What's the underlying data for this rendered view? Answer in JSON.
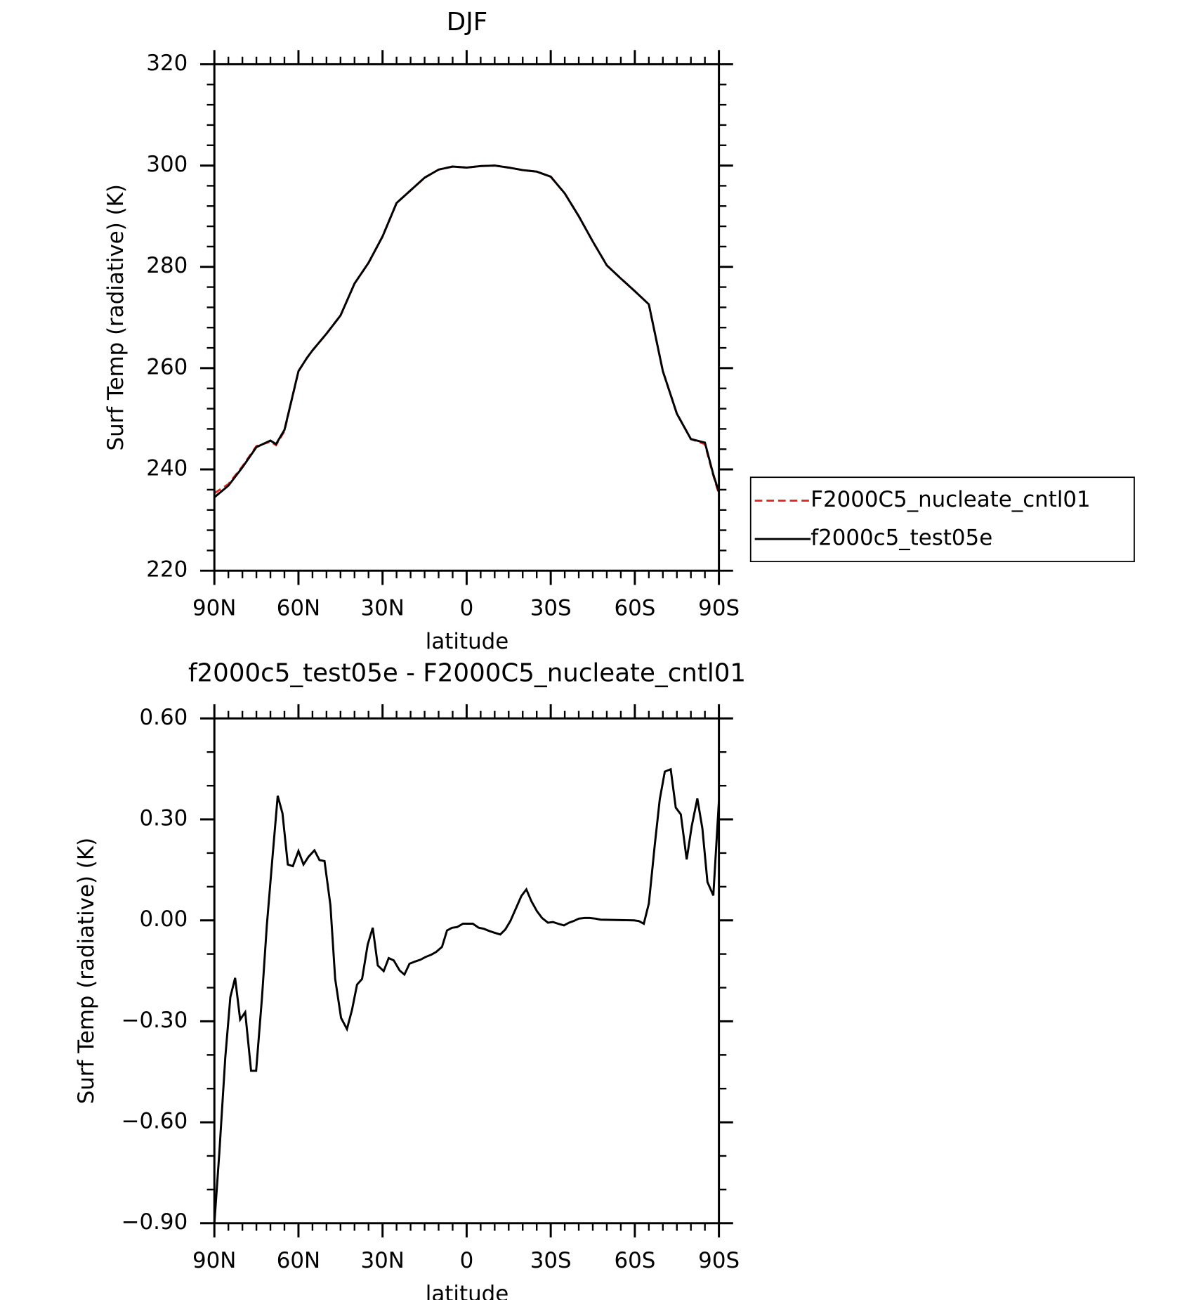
{
  "chart_data": [
    {
      "type": "line",
      "title": "DJF",
      "xlabel": "latitude",
      "ylabel": "Surf Temp (radiative) (K)",
      "xlim": [
        90,
        -90
      ],
      "ylim": [
        220,
        320
      ],
      "xticks": [
        {
          "value": 90,
          "label": "90N"
        },
        {
          "value": 60,
          "label": "60N"
        },
        {
          "value": 30,
          "label": "30N"
        },
        0,
        {
          "value": -30,
          "label": "30S"
        },
        {
          "value": -60,
          "label": "60S"
        },
        {
          "value": -90,
          "label": "90S"
        }
      ],
      "yticks": [
        220,
        240,
        260,
        280,
        300,
        320
      ],
      "legend": "right",
      "x": [
        90,
        85,
        80,
        75,
        70,
        68,
        65,
        60,
        57,
        55,
        50,
        45,
        40,
        35,
        30,
        25,
        20,
        15,
        10,
        5,
        0,
        -5,
        -10,
        -15,
        -20,
        -25,
        -30,
        -35,
        -40,
        -45,
        -50,
        -55,
        -60,
        -65,
        -70,
        -75,
        -80,
        -85,
        -88,
        -90
      ],
      "series": [
        {
          "name": "F2000C5_nucleate_cntl01",
          "color": "#e8251f",
          "line_style": "dashed",
          "values": [
            235.3,
            237.1,
            240.6,
            244.6,
            245.5,
            244.8,
            247.6,
            259.4,
            262,
            263.5,
            266.8,
            270.4,
            276.7,
            280.8,
            286,
            292.6,
            295.1,
            297.6,
            299.2,
            299.8,
            299.6,
            299.9,
            300,
            299.6,
            299.1,
            298.8,
            297.8,
            294.5,
            290,
            285,
            280.3,
            277.7,
            275.2,
            272.6,
            259.4,
            251,
            246,
            245.0,
            238.8,
            235.2
          ]
        },
        {
          "name": "f2000c5_test05e",
          "color": "#000000",
          "line_style": "solid",
          "values": [
            234.5,
            236.8,
            240.4,
            244.4,
            245.7,
            245,
            247.8,
            259.4,
            262,
            263.5,
            266.8,
            270.4,
            276.7,
            280.8,
            286,
            292.6,
            295.1,
            297.6,
            299.2,
            299.8,
            299.6,
            299.9,
            300,
            299.6,
            299.1,
            298.8,
            297.8,
            294.5,
            290,
            285,
            280.3,
            277.7,
            275.2,
            272.6,
            259.4,
            251,
            246,
            245.3,
            239,
            235.5
          ]
        }
      ]
    },
    {
      "type": "line",
      "title": "f2000c5_test05e - F2000C5_nucleate_cntl01",
      "xlabel": "latitude",
      "ylabel": "Surf Temp (radiative) (K)",
      "xlim": [
        90,
        -90
      ],
      "ylim": [
        -0.9,
        0.6
      ],
      "xticks": [
        {
          "value": 90,
          "label": "90N"
        },
        {
          "value": 60,
          "label": "60N"
        },
        {
          "value": 30,
          "label": "30N"
        },
        0,
        {
          "value": -30,
          "label": "30S"
        },
        {
          "value": -60,
          "label": "60S"
        },
        {
          "value": -90,
          "label": "90S"
        }
      ],
      "yticks": [
        {
          "value": -0.9,
          "label": "−0.90"
        },
        {
          "value": -0.6,
          "label": "−0.60"
        },
        {
          "value": -0.3,
          "label": "−0.30"
        },
        {
          "value": 0,
          "label": "0.00"
        },
        {
          "value": 0.3,
          "label": "0.30"
        },
        {
          "value": 0.6,
          "label": "0.60"
        }
      ],
      "x": [
        90,
        88.2,
        86.1,
        84.3,
        82.6,
        80.8,
        79,
        76.9,
        75.1,
        73,
        71.3,
        69.2,
        67.4,
        65.7,
        63.8,
        62,
        60,
        58.2,
        56.4,
        54.3,
        52.5,
        50.7,
        48.6,
        46.9,
        44.8,
        42.7,
        40.9,
        39.1,
        37.3,
        35.3,
        33.5,
        31.7,
        29.6,
        27.8,
        26,
        23.9,
        22.2,
        20.4,
        18.3,
        16.5,
        14.7,
        12.6,
        10.9,
        8.8,
        7,
        5.2,
        3.4,
        1.3,
        -0.5,
        -2.2,
        -4.3,
        -6.1,
        -8.2,
        -10,
        -12,
        -13.8,
        -15.6,
        -17.4,
        -19.5,
        -21.3,
        -23.1,
        -25.1,
        -26.9,
        -29,
        -30.8,
        -32.6,
        -34.7,
        -36.5,
        -38.2,
        -40,
        -42.1,
        -43.9,
        -46,
        -47.8,
        -59.7,
        -61.4,
        -63.2,
        -65,
        -67.1,
        -68.9,
        -70.7,
        -72.8,
        -74.6,
        -76.4,
        -78.5,
        -80.3,
        -82.3,
        -84.1,
        -85.9,
        -88,
        -90
      ],
      "series": [
        {
          "name": "f2000c5_test05e - F2000C5_nucleate_cntl01",
          "color": "#000000",
          "line_style": "solid",
          "values": [
            -0.9,
            -0.687,
            -0.407,
            -0.228,
            -0.171,
            -0.295,
            -0.273,
            -0.447,
            -0.447,
            -0.228,
            -0.017,
            0.194,
            0.37,
            0.318,
            0.166,
            0.161,
            0.206,
            0.166,
            0.189,
            0.208,
            0.179,
            0.176,
            0.045,
            -0.174,
            -0.29,
            -0.323,
            -0.266,
            -0.191,
            -0.174,
            -0.072,
            -0.022,
            -0.134,
            -0.151,
            -0.112,
            -0.119,
            -0.149,
            -0.161,
            -0.129,
            -0.122,
            -0.117,
            -0.109,
            -0.102,
            -0.094,
            -0.079,
            -0.03,
            -0.022,
            -0.02,
            -0.01,
            -0.01,
            -0.01,
            -0.022,
            -0.025,
            -0.032,
            -0.037,
            -0.042,
            -0.027,
            -0.002,
            0.032,
            0.072,
            0.092,
            0.057,
            0.027,
            0.007,
            -0.007,
            -0.005,
            -0.01,
            -0.015,
            -0.007,
            -0.002,
            0.005,
            0.007,
            0.007,
            0.005,
            0.002,
            0,
            -0.002,
            -0.01,
            0.05,
            0.223,
            0.36,
            0.442,
            0.449,
            0.335,
            0.315,
            0.181,
            0.28,
            0.362,
            0.273,
            0.114,
            0.074,
            0.355
          ]
        }
      ]
    }
  ]
}
